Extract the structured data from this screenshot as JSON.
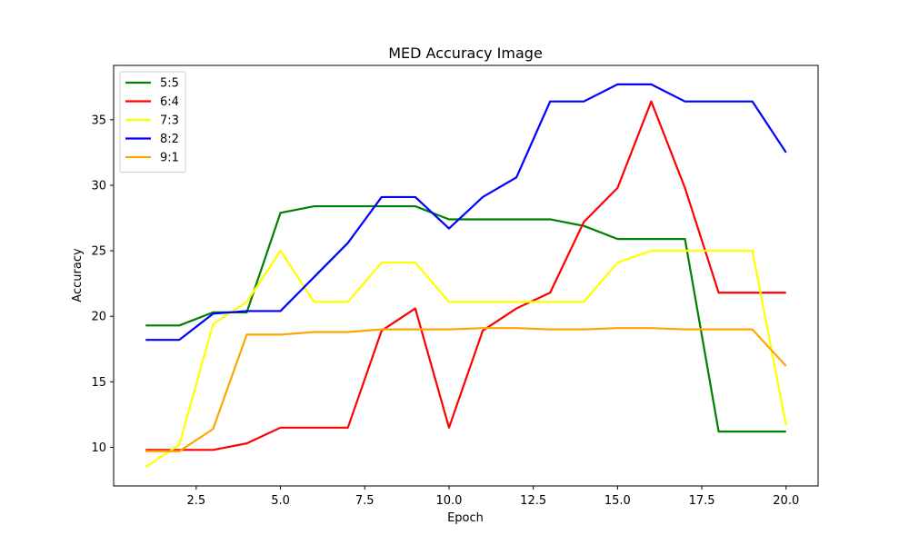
{
  "chart_data": {
    "type": "line",
    "title": "MED Accuracy Image",
    "xlabel": "Epoch",
    "ylabel": "Accuracy",
    "xlim": [
      0.05,
      20.95
    ],
    "ylim": [
      7.05,
      39.15
    ],
    "xticks": [
      2.5,
      5.0,
      7.5,
      10.0,
      12.5,
      15.0,
      17.5,
      20.0
    ],
    "xtick_labels": [
      "2.5",
      "5.0",
      "7.5",
      "10.0",
      "12.5",
      "15.0",
      "17.5",
      "20.0"
    ],
    "yticks": [
      10,
      15,
      20,
      25,
      30,
      35
    ],
    "ytick_labels": [
      "10",
      "15",
      "20",
      "25",
      "30",
      "35"
    ],
    "grid": false,
    "legend_position": "top-left",
    "x": [
      1,
      2,
      3,
      4,
      5,
      6,
      7,
      8,
      9,
      10,
      11,
      12,
      13,
      14,
      15,
      16,
      17,
      18,
      19,
      20
    ],
    "series": [
      {
        "name": "5:5",
        "color": "#008000",
        "values": [
          19.3,
          19.3,
          20.3,
          20.3,
          27.9,
          28.4,
          28.4,
          28.4,
          28.4,
          27.4,
          27.4,
          27.4,
          27.4,
          26.9,
          25.9,
          25.9,
          25.9,
          11.2,
          11.2,
          11.2
        ]
      },
      {
        "name": "6:4",
        "color": "#ff0000",
        "values": [
          9.8,
          9.8,
          9.8,
          10.3,
          11.5,
          11.5,
          11.5,
          18.9,
          20.6,
          11.5,
          18.9,
          20.6,
          21.8,
          27.2,
          29.8,
          36.4,
          29.8,
          21.8,
          21.8,
          21.8
        ]
      },
      {
        "name": "7:3",
        "color": "#ffff00",
        "values": [
          8.5,
          10.2,
          19.4,
          21.1,
          25.0,
          21.1,
          21.1,
          24.1,
          24.1,
          21.1,
          21.1,
          21.1,
          21.1,
          21.1,
          24.1,
          25.0,
          25.0,
          25.0,
          25.0,
          11.7
        ]
      },
      {
        "name": "8:2",
        "color": "#0000ff",
        "values": [
          18.2,
          18.2,
          20.2,
          20.4,
          20.4,
          23.0,
          25.6,
          29.1,
          29.1,
          26.7,
          29.1,
          30.6,
          36.4,
          36.4,
          37.7,
          37.7,
          36.4,
          36.4,
          36.4,
          32.5
        ]
      },
      {
        "name": "9:1",
        "color": "#ffa500",
        "values": [
          9.7,
          9.7,
          11.4,
          18.6,
          18.6,
          18.8,
          18.8,
          19.0,
          19.0,
          19.0,
          19.1,
          19.1,
          19.0,
          19.0,
          19.1,
          19.1,
          19.0,
          19.0,
          19.0,
          16.2
        ]
      }
    ]
  }
}
